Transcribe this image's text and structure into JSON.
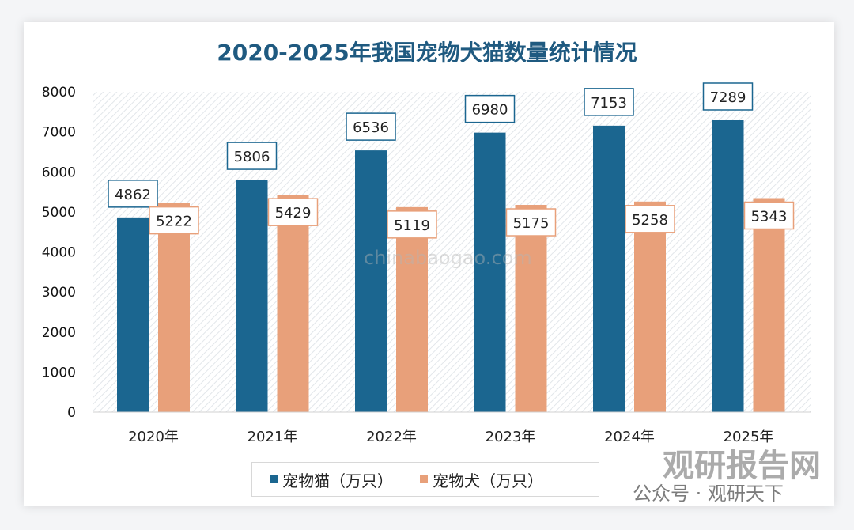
{
  "chart_data": {
    "type": "bar",
    "title": "2020-2025年我国宠物犬猫数量统计情况",
    "categories": [
      "2020年",
      "2021年",
      "2022年",
      "2023年",
      "2024年",
      "2025年"
    ],
    "series": [
      {
        "name": "宠物猫（万只）",
        "color": "#1b6690",
        "values": [
          4862,
          5806,
          6536,
          6980,
          7153,
          7289
        ]
      },
      {
        "name": "宠物犬（万只）",
        "color": "#e8a07a",
        "values": [
          5222,
          5429,
          5119,
          5175,
          5258,
          5343
        ]
      }
    ],
    "yticks": [
      0,
      1000,
      2000,
      3000,
      4000,
      5000,
      6000,
      7000,
      8000
    ],
    "ylim": [
      0,
      8000
    ],
    "grid": false,
    "legend_position": "bottom",
    "data_labels": true
  },
  "watermarks": {
    "brand": "观研报告网",
    "wechat": "公众号 · 观研天下",
    "site": "chinabaogao.com"
  }
}
